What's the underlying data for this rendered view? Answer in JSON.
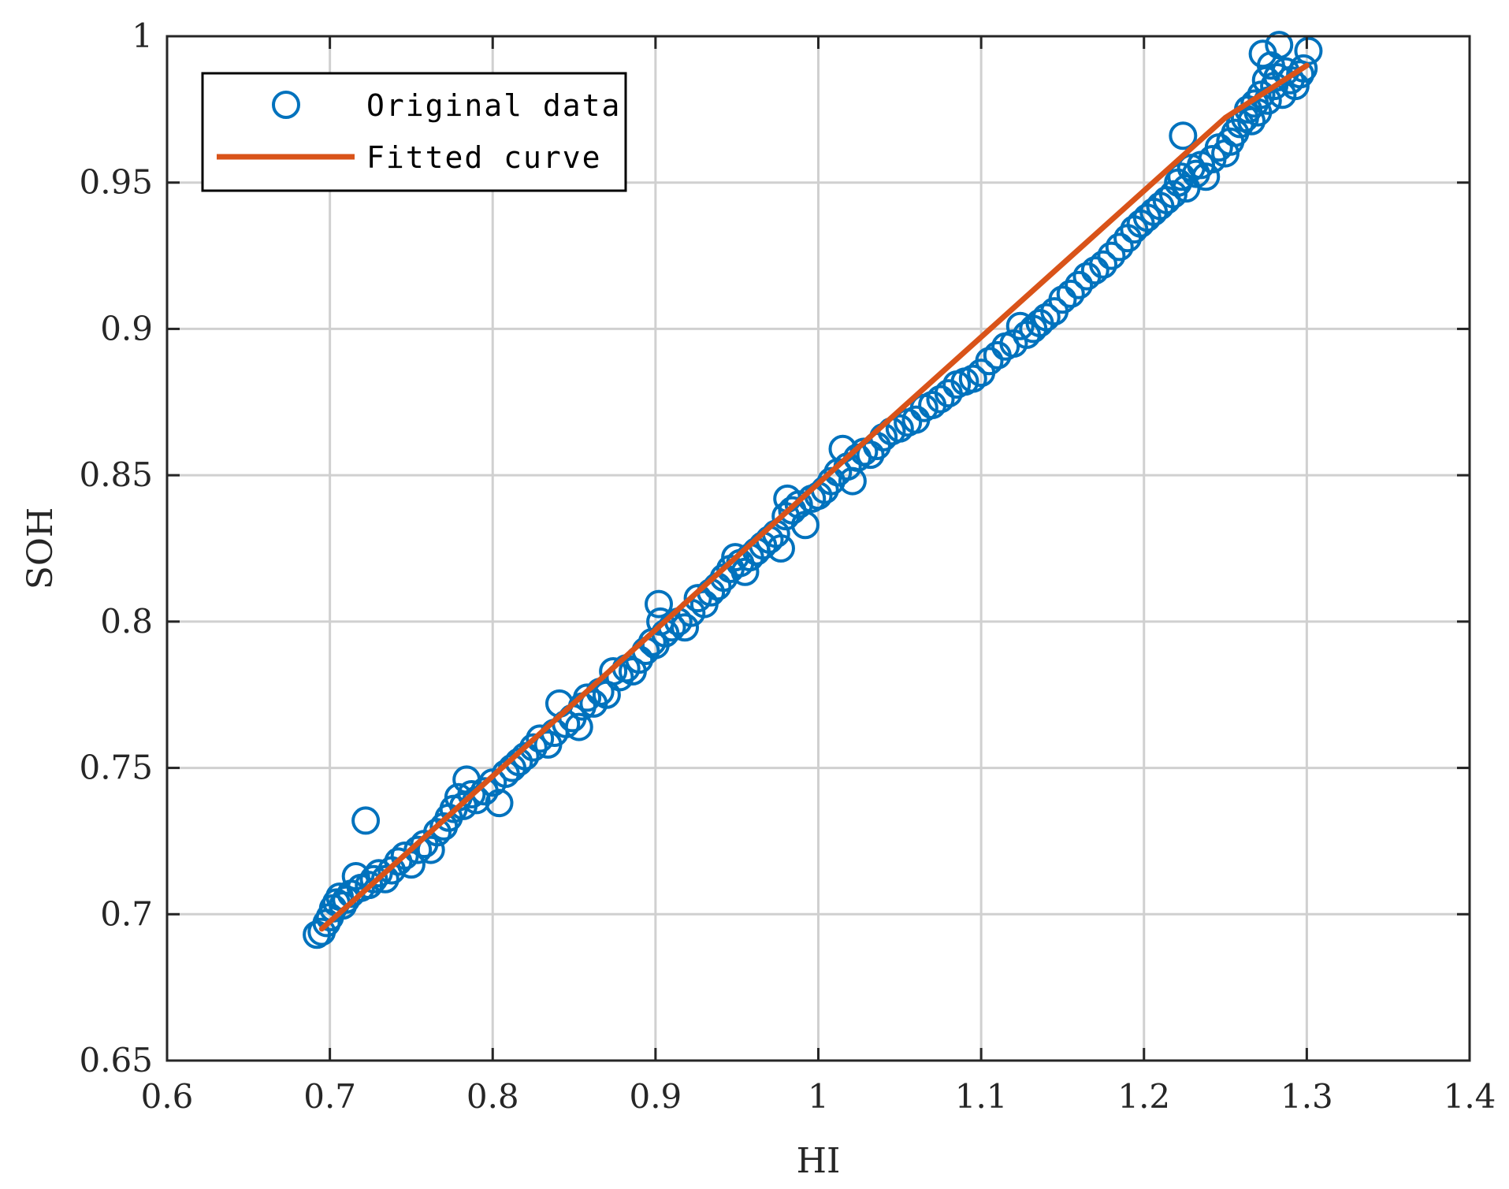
{
  "chart_data": {
    "type": "scatter",
    "title": "",
    "xlabel": "HI",
    "ylabel": "SOH",
    "xlim": [
      0.6,
      1.4
    ],
    "ylim": [
      0.65,
      1.0
    ],
    "xticks": [
      0.6,
      0.7,
      0.8,
      0.9,
      1.0,
      1.1,
      1.2,
      1.3,
      1.4
    ],
    "yticks": [
      0.65,
      0.7,
      0.75,
      0.8,
      0.85,
      0.9,
      0.95,
      1.0
    ],
    "xtick_labels": [
      "0.6",
      "0.7",
      "0.8",
      "0.9",
      "1",
      "1.1",
      "1.2",
      "1.3",
      "1.4"
    ],
    "ytick_labels": [
      "0.65",
      "0.7",
      "0.75",
      "0.8",
      "0.85",
      "0.9",
      "0.95",
      "1"
    ],
    "grid": true,
    "legend_position": "top-left",
    "legend": [
      "Original data",
      "Fitted curve"
    ],
    "colors": {
      "scatter": "#0072BD",
      "fit": "#D95319",
      "grid": "#d0d0d0",
      "axis": "#262626"
    },
    "series": [
      {
        "name": "Original data",
        "kind": "scatter",
        "points": [
          [
            0.692,
            0.693
          ],
          [
            0.695,
            0.694
          ],
          [
            0.698,
            0.697
          ],
          [
            0.7,
            0.699
          ],
          [
            0.702,
            0.702
          ],
          [
            0.704,
            0.704
          ],
          [
            0.706,
            0.706
          ],
          [
            0.708,
            0.703
          ],
          [
            0.71,
            0.705
          ],
          [
            0.713,
            0.707
          ],
          [
            0.716,
            0.713
          ],
          [
            0.719,
            0.709
          ],
          [
            0.722,
            0.732
          ],
          [
            0.724,
            0.71
          ],
          [
            0.727,
            0.712
          ],
          [
            0.73,
            0.714
          ],
          [
            0.734,
            0.712
          ],
          [
            0.738,
            0.715
          ],
          [
            0.742,
            0.718
          ],
          [
            0.746,
            0.72
          ],
          [
            0.75,
            0.717
          ],
          [
            0.754,
            0.722
          ],
          [
            0.758,
            0.724
          ],
          [
            0.762,
            0.722
          ],
          [
            0.766,
            0.728
          ],
          [
            0.77,
            0.73
          ],
          [
            0.773,
            0.733
          ],
          [
            0.776,
            0.736
          ],
          [
            0.779,
            0.74
          ],
          [
            0.782,
            0.737
          ],
          [
            0.784,
            0.746
          ],
          [
            0.787,
            0.741
          ],
          [
            0.79,
            0.739
          ],
          [
            0.795,
            0.742
          ],
          [
            0.8,
            0.745
          ],
          [
            0.804,
            0.738
          ],
          [
            0.808,
            0.748
          ],
          [
            0.812,
            0.75
          ],
          [
            0.816,
            0.752
          ],
          [
            0.82,
            0.754
          ],
          [
            0.825,
            0.757
          ],
          [
            0.829,
            0.76
          ],
          [
            0.834,
            0.758
          ],
          [
            0.838,
            0.762
          ],
          [
            0.841,
            0.772
          ],
          [
            0.845,
            0.765
          ],
          [
            0.849,
            0.767
          ],
          [
            0.853,
            0.764
          ],
          [
            0.855,
            0.771
          ],
          [
            0.858,
            0.774
          ],
          [
            0.862,
            0.772
          ],
          [
            0.866,
            0.776
          ],
          [
            0.87,
            0.775
          ],
          [
            0.874,
            0.783
          ],
          [
            0.878,
            0.781
          ],
          [
            0.882,
            0.784
          ],
          [
            0.886,
            0.783
          ],
          [
            0.89,
            0.787
          ],
          [
            0.894,
            0.79
          ],
          [
            0.898,
            0.793
          ],
          [
            0.9,
            0.792
          ],
          [
            0.902,
            0.806
          ],
          [
            0.903,
            0.8
          ],
          [
            0.906,
            0.796
          ],
          [
            0.91,
            0.798
          ],
          [
            0.914,
            0.8
          ],
          [
            0.918,
            0.798
          ],
          [
            0.922,
            0.803
          ],
          [
            0.926,
            0.808
          ],
          [
            0.93,
            0.806
          ],
          [
            0.934,
            0.81
          ],
          [
            0.938,
            0.812
          ],
          [
            0.942,
            0.815
          ],
          [
            0.946,
            0.818
          ],
          [
            0.949,
            0.822
          ],
          [
            0.952,
            0.82
          ],
          [
            0.955,
            0.817
          ],
          [
            0.958,
            0.822
          ],
          [
            0.962,
            0.824
          ],
          [
            0.966,
            0.826
          ],
          [
            0.97,
            0.828
          ],
          [
            0.974,
            0.83
          ],
          [
            0.977,
            0.825
          ],
          [
            0.98,
            0.836
          ],
          [
            0.981,
            0.842
          ],
          [
            0.984,
            0.838
          ],
          [
            0.988,
            0.84
          ],
          [
            0.992,
            0.833
          ],
          [
            0.996,
            0.842
          ],
          [
            1.0,
            0.843
          ],
          [
            1.004,
            0.845
          ],
          [
            1.008,
            0.848
          ],
          [
            1.012,
            0.851
          ],
          [
            1.015,
            0.859
          ],
          [
            1.018,
            0.853
          ],
          [
            1.021,
            0.848
          ],
          [
            1.024,
            0.856
          ],
          [
            1.028,
            0.858
          ],
          [
            1.032,
            0.857
          ],
          [
            1.036,
            0.86
          ],
          [
            1.04,
            0.863
          ],
          [
            1.045,
            0.865
          ],
          [
            1.05,
            0.866
          ],
          [
            1.055,
            0.868
          ],
          [
            1.06,
            0.869
          ],
          [
            1.065,
            0.873
          ],
          [
            1.07,
            0.874
          ],
          [
            1.075,
            0.876
          ],
          [
            1.08,
            0.878
          ],
          [
            1.085,
            0.881
          ],
          [
            1.09,
            0.882
          ],
          [
            1.095,
            0.883
          ],
          [
            1.1,
            0.885
          ],
          [
            1.105,
            0.889
          ],
          [
            1.11,
            0.891
          ],
          [
            1.115,
            0.894
          ],
          [
            1.12,
            0.895
          ],
          [
            1.124,
            0.901
          ],
          [
            1.128,
            0.898
          ],
          [
            1.132,
            0.9
          ],
          [
            1.136,
            0.902
          ],
          [
            1.14,
            0.904
          ],
          [
            1.145,
            0.906
          ],
          [
            1.15,
            0.91
          ],
          [
            1.155,
            0.912
          ],
          [
            1.16,
            0.915
          ],
          [
            1.165,
            0.918
          ],
          [
            1.17,
            0.92
          ],
          [
            1.175,
            0.922
          ],
          [
            1.18,
            0.925
          ],
          [
            1.185,
            0.928
          ],
          [
            1.19,
            0.931
          ],
          [
            1.194,
            0.934
          ],
          [
            1.198,
            0.936
          ],
          [
            1.202,
            0.938
          ],
          [
            1.206,
            0.94
          ],
          [
            1.21,
            0.942
          ],
          [
            1.214,
            0.944
          ],
          [
            1.218,
            0.946
          ],
          [
            1.221,
            0.95
          ],
          [
            1.223,
            0.952
          ],
          [
            1.224,
            0.966
          ],
          [
            1.226,
            0.948
          ],
          [
            1.229,
            0.955
          ],
          [
            1.232,
            0.953
          ],
          [
            1.235,
            0.956
          ],
          [
            1.238,
            0.952
          ],
          [
            1.242,
            0.958
          ],
          [
            1.246,
            0.962
          ],
          [
            1.25,
            0.96
          ],
          [
            1.253,
            0.964
          ],
          [
            1.256,
            0.967
          ],
          [
            1.259,
            0.97
          ],
          [
            1.262,
            0.972
          ],
          [
            1.264,
            0.975
          ],
          [
            1.266,
            0.971
          ],
          [
            1.268,
            0.977
          ],
          [
            1.27,
            0.974
          ],
          [
            1.272,
            0.98
          ],
          [
            1.273,
            0.994
          ],
          [
            1.275,
            0.985
          ],
          [
            1.276,
            0.978
          ],
          [
            1.278,
            0.99
          ],
          [
            1.28,
            0.983
          ],
          [
            1.282,
            0.986
          ],
          [
            1.283,
            0.997
          ],
          [
            1.285,
            0.98
          ],
          [
            1.287,
            0.988
          ],
          [
            1.29,
            0.985
          ],
          [
            1.293,
            0.983
          ],
          [
            1.296,
            0.987
          ],
          [
            1.298,
            0.989
          ],
          [
            1.301,
            0.995
          ]
        ]
      },
      {
        "name": "Fitted curve",
        "kind": "line",
        "points": [
          [
            0.695,
            0.695
          ],
          [
            0.75,
            0.7222
          ],
          [
            0.8,
            0.7472
          ],
          [
            0.85,
            0.7722
          ],
          [
            0.9,
            0.7972
          ],
          [
            0.95,
            0.8222
          ],
          [
            1.0,
            0.8472
          ],
          [
            1.05,
            0.8722
          ],
          [
            1.1,
            0.8972
          ],
          [
            1.15,
            0.9222
          ],
          [
            1.2,
            0.9472
          ],
          [
            1.25,
            0.9722
          ],
          [
            1.3,
            0.99
          ]
        ]
      }
    ]
  }
}
